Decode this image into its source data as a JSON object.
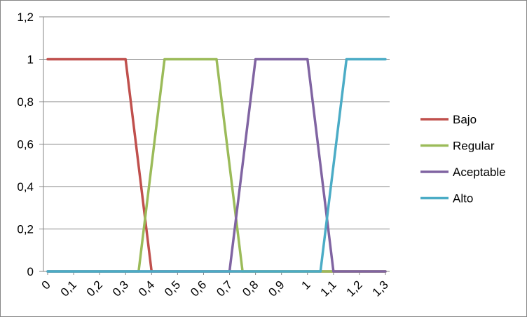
{
  "chart_data": {
    "type": "line",
    "title": "",
    "xlabel": "",
    "ylabel": "",
    "x_ticks": [
      "0",
      "0,1",
      "0,2",
      "0,3",
      "0,4",
      "0,5",
      "0,6",
      "0,7",
      "0,8",
      "0,9",
      "1",
      "1,1",
      "1,2",
      "1,3"
    ],
    "y_ticks": [
      "0",
      "0,2",
      "0,4",
      "0,6",
      "0,8",
      "1",
      "1,2"
    ],
    "xlim": [
      0,
      1.3
    ],
    "ylim": [
      0,
      1.2
    ],
    "grid": "horizontal",
    "legend_position": "right",
    "series": [
      {
        "name": "Bajo",
        "color": "#C0504D",
        "points": [
          [
            0,
            1
          ],
          [
            0.3,
            1
          ],
          [
            0.4,
            0
          ],
          [
            1.3,
            0
          ]
        ]
      },
      {
        "name": "Regular",
        "color": "#9BBB59",
        "points": [
          [
            0,
            0
          ],
          [
            0.35,
            0
          ],
          [
            0.45,
            1
          ],
          [
            0.65,
            1
          ],
          [
            0.75,
            0
          ],
          [
            1.3,
            0
          ]
        ]
      },
      {
        "name": "Aceptable",
        "color": "#8064A2",
        "points": [
          [
            0,
            0
          ],
          [
            0.7,
            0
          ],
          [
            0.8,
            1
          ],
          [
            1.0,
            1
          ],
          [
            1.1,
            0
          ],
          [
            1.3,
            0
          ]
        ]
      },
      {
        "name": "Alto",
        "color": "#4BACC6",
        "points": [
          [
            0,
            0
          ],
          [
            1.05,
            0
          ],
          [
            1.15,
            1
          ],
          [
            1.3,
            1
          ]
        ]
      }
    ]
  }
}
